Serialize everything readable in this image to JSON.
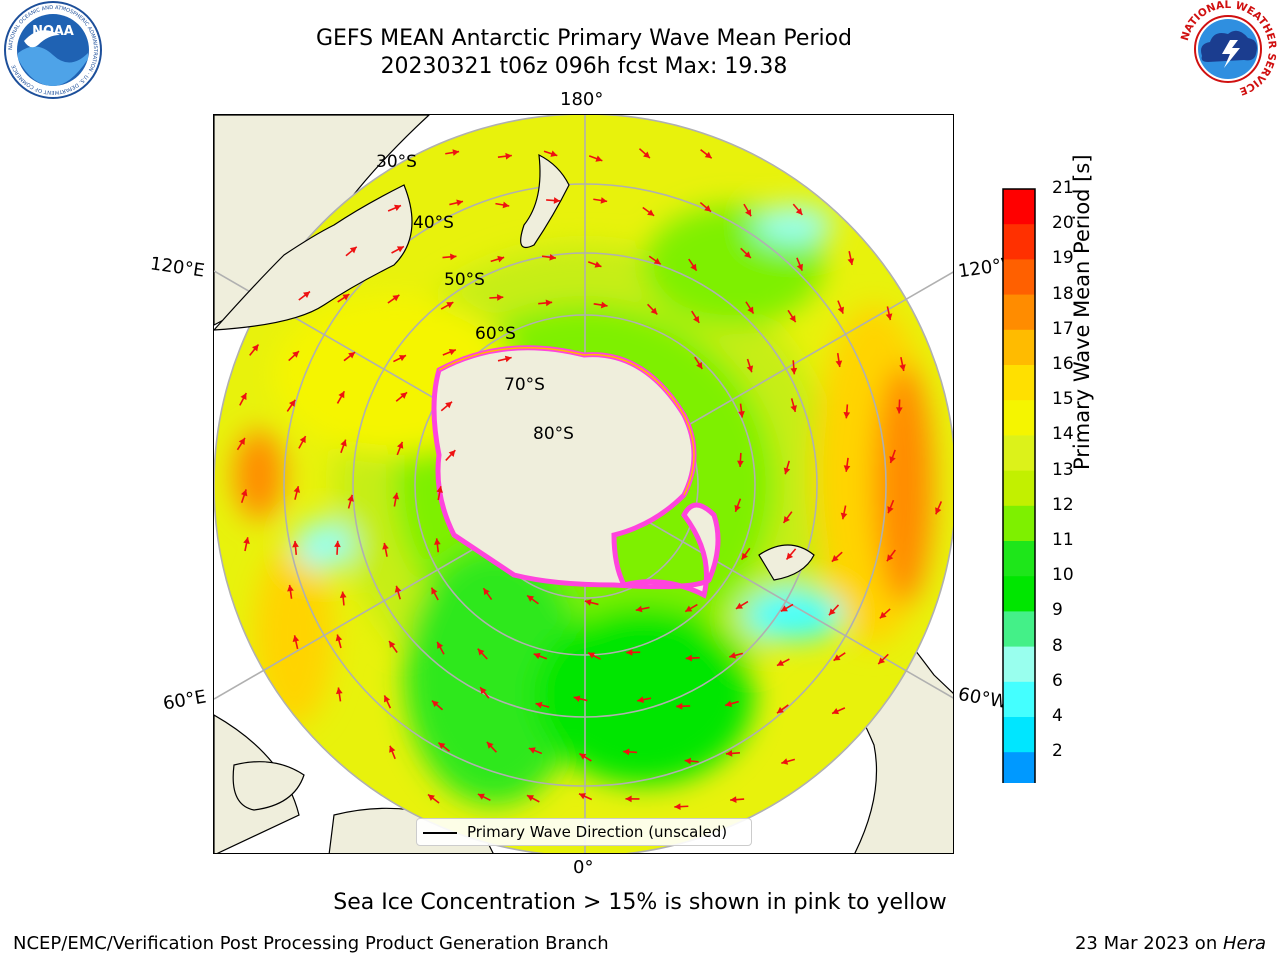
{
  "title": {
    "line1": "GEFS MEAN Antarctic Primary Wave Mean Period",
    "line2": "20230321 t06z 096h fcst   Max: 19.38"
  },
  "map": {
    "longitude_labels": {
      "top": "180°",
      "bottom": "0°",
      "upper_left": "120°E",
      "upper_right": "120°W",
      "lower_left": "60°E",
      "lower_right": "60°W"
    },
    "latitude_labels": [
      "30°S",
      "40°S",
      "50°S",
      "60°S",
      "70°S",
      "80°S"
    ],
    "legend": "Primary Wave Direction (unscaled)",
    "land_color": "#efeedc",
    "ice_edge_color": "#ff44dd",
    "arrow_color": "#ee1111"
  },
  "colorbar": {
    "label": "Primary Wave Mean Period [s]",
    "ticks": [
      "21",
      "20",
      "19",
      "18",
      "17",
      "16",
      "15",
      "14",
      "13",
      "12",
      "11",
      "10",
      "9",
      "8",
      "6",
      "4",
      "2"
    ],
    "colors_top_to_bottom": [
      "#ff0000",
      "#ff3000",
      "#ff6000",
      "#ff8c00",
      "#ffbb00",
      "#ffe000",
      "#f5f500",
      "#dcf21a",
      "#c2f000",
      "#7ef000",
      "#1ee61a",
      "#00e600",
      "#44f088",
      "#99ffee",
      "#44ffff",
      "#00e6ff",
      "#0099ff",
      "#0055ee"
    ],
    "extend_min_color": "#0022dd"
  },
  "caption": "Sea Ice Concentration > 15% is shown in pink to yellow",
  "footer": {
    "left": "NCEP/EMC/Verification Post Processing Product Generation Branch",
    "right_date": "23 Mar 2023 on ",
    "right_machine": "Hera"
  },
  "logos": {
    "left": "NOAA",
    "left_ring": "NATIONAL OCEANIC AND ATMOSPHERIC ADMINISTRATION · U.S. DEPARTMENT OF COMMERCE",
    "right_ring": "NATIONAL WEATHER SERVICE"
  }
}
